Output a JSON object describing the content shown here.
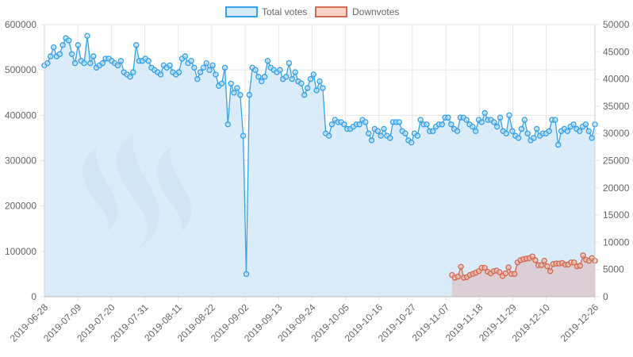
{
  "chart_data": {
    "type": "area",
    "legend_position": "top-center",
    "grid": true,
    "series": [
      {
        "name": "Total votes",
        "axis": "left",
        "color": "#36a2eb",
        "fill": "#d6e9f8",
        "start": "2019-06-28",
        "end": "2019-12-26",
        "values": [
          510000,
          515000,
          530000,
          550000,
          530000,
          535000,
          555000,
          570000,
          565000,
          535000,
          515000,
          555000,
          520000,
          515000,
          575000,
          515000,
          530000,
          505000,
          510000,
          515000,
          525000,
          525000,
          520000,
          515000,
          510000,
          520000,
          495000,
          490000,
          485000,
          495000,
          555000,
          520000,
          520000,
          525000,
          520000,
          505000,
          500000,
          495000,
          490000,
          510000,
          505000,
          510000,
          495000,
          490000,
          495000,
          525000,
          530000,
          515000,
          520000,
          505000,
          480000,
          495000,
          505000,
          515000,
          500000,
          510000,
          490000,
          465000,
          470000,
          505000,
          380000,
          470000,
          450000,
          460000,
          445000,
          355000,
          50000,
          445000,
          505000,
          500000,
          485000,
          475000,
          485000,
          520000,
          505000,
          500000,
          495000,
          500000,
          480000,
          485000,
          515000,
          480000,
          495000,
          475000,
          470000,
          445000,
          460000,
          480000,
          490000,
          455000,
          475000,
          460000,
          360000,
          355000,
          380000,
          390000,
          385000,
          385000,
          380000,
          370000,
          370000,
          375000,
          380000,
          380000,
          390000,
          385000,
          360000,
          345000,
          370000,
          365000,
          355000,
          370000,
          355000,
          350000,
          385000,
          385000,
          385000,
          365000,
          360000,
          345000,
          340000,
          360000,
          355000,
          390000,
          380000,
          380000,
          365000,
          365000,
          375000,
          380000,
          380000,
          395000,
          395000,
          380000,
          370000,
          365000,
          395000,
          395000,
          390000,
          380000,
          375000,
          365000,
          390000,
          385000,
          405000,
          390000,
          390000,
          385000,
          375000,
          395000,
          365000,
          360000,
          400000,
          365000,
          355000,
          350000,
          370000,
          390000,
          360000,
          345000,
          350000,
          370000,
          355000,
          360000,
          360000,
          365000,
          390000,
          390000,
          335000,
          365000,
          370000,
          365000,
          375000,
          380000,
          370000,
          365000,
          375000,
          380000,
          365000,
          350000,
          380000
        ]
      },
      {
        "name": "Downvotes",
        "axis": "right",
        "color": "#d26a54",
        "fill": "#dcc4c8",
        "start": "2019-11-09",
        "end": "2019-12-26",
        "values": [
          4000,
          3500,
          3700,
          5500,
          3500,
          3600,
          4000,
          4200,
          4400,
          4700,
          5300,
          5300,
          4600,
          4300,
          4700,
          4800,
          4500,
          3800,
          4300,
          5400,
          4200,
          4200,
          6300,
          6700,
          6900,
          7000,
          7100,
          7400,
          6700,
          5800,
          5800,
          6600,
          5600,
          4700,
          6000,
          6100,
          6100,
          6200,
          5900,
          5900,
          6300,
          6300,
          5600,
          5700,
          7600,
          6800,
          6600,
          7100,
          6600
        ]
      }
    ],
    "y_left": {
      "min": 0,
      "max": 600000
    },
    "y_right": {
      "min": 0,
      "max": 50000
    },
    "y_left_ticks": [
      "600000",
      "500000",
      "400000",
      "300000",
      "200000",
      "100000",
      "0"
    ],
    "y_right_ticks": [
      "50000",
      "45000",
      "40000",
      "35000",
      "30000",
      "25000",
      "20000",
      "15000",
      "10000",
      "5000",
      "0"
    ],
    "x_ticks": [
      "2019-06-28",
      "2019-07-09",
      "2019-07-20",
      "2019-07-31",
      "2019-08-11",
      "2019-08-22",
      "2019-09-02",
      "2019-09-13",
      "2019-09-24",
      "2019-10-05",
      "2019-10-16",
      "2019-10-27",
      "2019-11-07",
      "2019-11-18",
      "2019-11-29",
      "2019-12-10",
      "2019-12-26"
    ],
    "watermark_icon": "steem-logo-icon"
  }
}
